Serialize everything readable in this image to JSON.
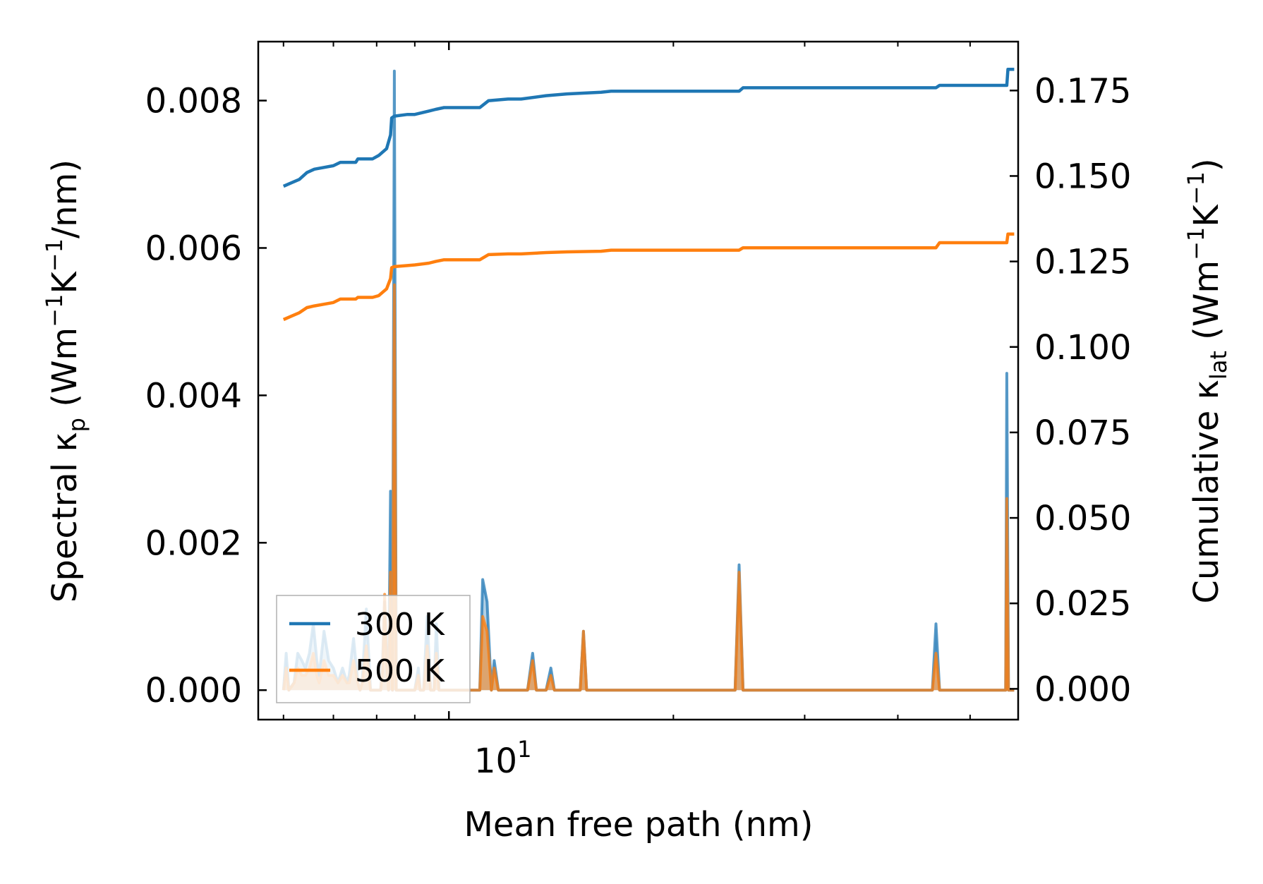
{
  "chart_data": {
    "type": "line",
    "title": "",
    "xlabel": "Mean free path (nm)",
    "xscale": "log",
    "xlim": [
      5.55,
      58
    ],
    "x_major_tick_label": {
      "base": "10",
      "exponent": "1",
      "value": 10
    },
    "x_minor_ticks": [
      6,
      7,
      8,
      9,
      20,
      30,
      40,
      50
    ],
    "y_left": {
      "label_parts": {
        "pre": "Spectral κ",
        "sub": "p",
        "open": " (Wm",
        "sup1": "−1",
        "mid": "K",
        "sup2": "−1",
        "post": "/nm)"
      },
      "ylim": [
        -0.0004,
        0.0088
      ],
      "ticks": [
        0.0,
        0.002,
        0.004,
        0.006,
        0.008
      ],
      "tick_labels": [
        "0.000",
        "0.002",
        "0.004",
        "0.006",
        "0.008"
      ]
    },
    "y_right": {
      "label_parts": {
        "pre": "Cumulative κ",
        "sub": "lat",
        "open": " (Wm",
        "sup1": "−1",
        "mid": "K",
        "sup2": "−1",
        "post": ")"
      },
      "ylim": [
        -0.009,
        0.1893
      ],
      "ticks": [
        0.0,
        0.025,
        0.05,
        0.075,
        0.1,
        0.125,
        0.15,
        0.175
      ],
      "tick_labels": [
        "0.000",
        "0.025",
        "0.050",
        "0.075",
        "0.100",
        "0.125",
        "0.150",
        "0.175"
      ]
    },
    "legend": {
      "placement": "lower-left",
      "entries": [
        "300 K",
        "500 K"
      ]
    },
    "colors": {
      "300K": "#1f77b4",
      "500K": "#ff7f0e"
    },
    "series": [
      {
        "name": "300 K",
        "kind": "cumulative",
        "axis": "right",
        "x": [
          6.0,
          6.15,
          6.3,
          6.45,
          6.6,
          6.8,
          7.0,
          7.15,
          7.5,
          7.55,
          7.9,
          8.05,
          8.25,
          8.35,
          8.38,
          8.45,
          8.8,
          9.0,
          9.4,
          9.6,
          9.85,
          10.4,
          11.0,
          11.3,
          12.0,
          12.5,
          13.5,
          14.4,
          16.0,
          16.5,
          24.5,
          24.8,
          45.0,
          45.5,
          56.0,
          56.2,
          57.3
        ],
        "values": [
          0.147,
          0.148,
          0.149,
          0.151,
          0.152,
          0.1525,
          0.153,
          0.154,
          0.154,
          0.155,
          0.155,
          0.156,
          0.158,
          0.162,
          0.167,
          0.1675,
          0.168,
          0.168,
          0.169,
          0.1695,
          0.17,
          0.17,
          0.17,
          0.172,
          0.1725,
          0.1725,
          0.1735,
          0.174,
          0.1745,
          0.1748,
          0.1748,
          0.1758,
          0.1758,
          0.1765,
          0.1765,
          0.1812,
          0.1812
        ]
      },
      {
        "name": "500 K",
        "kind": "cumulative",
        "axis": "right",
        "x": [
          6.0,
          6.15,
          6.3,
          6.45,
          6.6,
          6.8,
          7.0,
          7.15,
          7.5,
          7.55,
          7.9,
          8.05,
          8.25,
          8.35,
          8.38,
          8.45,
          8.8,
          9.0,
          9.4,
          9.6,
          9.85,
          10.4,
          11.0,
          11.3,
          12.0,
          12.5,
          13.5,
          14.4,
          16.0,
          16.5,
          24.5,
          24.8,
          45.0,
          45.5,
          56.0,
          56.2,
          57.3
        ],
        "values": [
          0.108,
          0.109,
          0.11,
          0.1115,
          0.112,
          0.1125,
          0.113,
          0.114,
          0.114,
          0.1145,
          0.1145,
          0.115,
          0.117,
          0.12,
          0.1232,
          0.1235,
          0.1238,
          0.124,
          0.1245,
          0.125,
          0.1255,
          0.1255,
          0.1255,
          0.127,
          0.1272,
          0.1272,
          0.1276,
          0.1278,
          0.128,
          0.1283,
          0.1283,
          0.129,
          0.129,
          0.1305,
          0.1305,
          0.133,
          0.133
        ]
      },
      {
        "name": "300 K",
        "kind": "spectral",
        "axis": "left",
        "x": [
          6.0,
          6.05,
          6.1,
          6.2,
          6.27,
          6.35,
          6.42,
          6.5,
          6.58,
          6.65,
          6.7,
          6.8,
          6.9,
          7.0,
          7.1,
          7.2,
          7.3,
          7.35,
          7.45,
          7.55,
          7.6,
          7.65,
          7.75,
          7.85,
          7.95,
          8.05,
          8.1,
          8.15,
          8.2,
          8.25,
          8.3,
          8.35,
          8.4,
          8.45,
          8.5,
          8.6,
          8.8,
          9.0,
          9.1,
          9.15,
          9.25,
          9.35,
          9.45,
          9.55,
          9.62,
          9.7,
          9.8,
          10.5,
          11.0,
          11.1,
          11.25,
          11.4,
          11.5,
          11.65,
          11.75,
          11.85,
          12.0,
          12.2,
          12.6,
          12.75,
          12.95,
          13.1,
          13.3,
          13.5,
          13.7,
          13.85,
          14.0,
          14.3,
          14.8,
          15.0,
          15.15,
          15.3,
          15.5,
          24.0,
          24.2,
          24.5,
          24.8,
          25.1,
          44.0,
          44.5,
          45.0,
          45.5,
          46.0,
          55.5,
          55.8,
          56.0,
          56.3,
          56.6,
          57.3
        ],
        "values": [
          0.0,
          0.0005,
          0.0,
          0.0001,
          0.0005,
          0.0004,
          0.0003,
          0.0005,
          0.0009,
          0.0004,
          0.0002,
          0.0008,
          0.0004,
          0.0003,
          0.0001,
          0.0003,
          0.0001,
          0.0002,
          0.0007,
          0.0001,
          0.0,
          0.0001,
          0.0011,
          0.0,
          0.0,
          0.0,
          0.0,
          0.0004,
          0.0012,
          0.0004,
          0.0,
          0.0027,
          0.0,
          0.0084,
          0.0,
          0.0,
          0.0,
          0.0,
          0.0003,
          0.0,
          0.0,
          0.001,
          0.0,
          0.0,
          0.0009,
          0.0,
          0.0,
          0.0,
          0.0,
          0.0015,
          0.0012,
          0.0,
          0.0004,
          0.0,
          0.0,
          0.0,
          0.0,
          0.0,
          0.0,
          0.0,
          0.0005,
          0.0,
          0.0,
          0.0,
          0.0003,
          0.0,
          0.0,
          0.0,
          0.0,
          0.0,
          0.0008,
          0.0,
          0.0,
          0.0,
          0.0,
          0.0017,
          0.0,
          0.0,
          0.0,
          0.0,
          0.0009,
          0.0,
          0.0,
          0.0,
          0.0,
          0.0043,
          0.0,
          0.0,
          0.0
        ]
      },
      {
        "name": "500 K",
        "kind": "spectral",
        "axis": "left",
        "x": [
          6.0,
          6.05,
          6.1,
          6.2,
          6.27,
          6.35,
          6.42,
          6.5,
          6.58,
          6.65,
          6.7,
          6.8,
          6.9,
          7.0,
          7.1,
          7.2,
          7.3,
          7.35,
          7.45,
          7.55,
          7.6,
          7.65,
          7.75,
          7.85,
          7.95,
          8.05,
          8.1,
          8.15,
          8.2,
          8.25,
          8.3,
          8.35,
          8.4,
          8.45,
          8.5,
          8.6,
          8.8,
          9.0,
          9.1,
          9.15,
          9.25,
          9.35,
          9.45,
          9.55,
          9.62,
          9.7,
          9.8,
          10.5,
          11.0,
          11.1,
          11.25,
          11.4,
          11.5,
          11.65,
          11.75,
          11.85,
          12.0,
          12.2,
          12.6,
          12.75,
          12.95,
          13.1,
          13.3,
          13.5,
          13.7,
          13.85,
          14.0,
          14.3,
          14.8,
          15.0,
          15.15,
          15.3,
          15.5,
          24.0,
          24.2,
          24.5,
          24.8,
          25.1,
          44.0,
          44.5,
          45.0,
          45.5,
          46.0,
          55.5,
          55.8,
          56.0,
          56.3,
          56.6,
          57.3
        ],
        "values": [
          0.0,
          0.0003,
          0.0,
          0.0001,
          0.0003,
          0.0002,
          0.0002,
          0.0003,
          0.0005,
          0.0002,
          0.0001,
          0.0004,
          0.0002,
          0.0002,
          0.0001,
          0.0002,
          0.0001,
          0.0001,
          0.0004,
          0.0001,
          0.0,
          0.0001,
          0.0006,
          0.0,
          0.0,
          0.0,
          0.0,
          0.0003,
          0.0013,
          0.0004,
          0.0,
          0.0016,
          0.0,
          0.0055,
          0.0,
          0.0,
          0.0,
          0.0,
          0.0002,
          0.0,
          0.0,
          0.0006,
          0.0,
          0.0,
          0.0005,
          0.0,
          0.0,
          0.0,
          0.0,
          0.001,
          0.0008,
          0.0,
          0.0003,
          0.0,
          0.0,
          0.0,
          0.0,
          0.0,
          0.0,
          0.0,
          0.0004,
          0.0,
          0.0,
          0.0,
          0.0002,
          0.0,
          0.0,
          0.0,
          0.0,
          0.0,
          0.0008,
          0.0,
          0.0,
          0.0,
          0.0,
          0.0016,
          0.0,
          0.0,
          0.0,
          0.0,
          0.0005,
          0.0,
          0.0,
          0.0,
          0.0,
          0.0026,
          0.0,
          0.0,
          0.0
        ]
      }
    ]
  }
}
